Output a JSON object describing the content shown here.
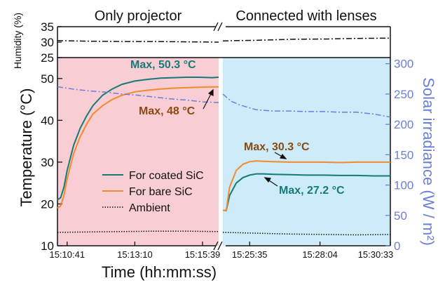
{
  "chart_data": {
    "type": "line",
    "panels": {
      "left_title": "Only projector",
      "right_title": "Connected with lenses"
    },
    "xlabel": "Time (hh:mm:ss)",
    "x_ticks_left": [
      "15:10:41",
      "15:13:10",
      "15:15:39"
    ],
    "x_ticks_right": [
      "15:25:35",
      "15:28:04",
      "15:30:33"
    ],
    "ylabel_temperature": "Temperature (°C)",
    "ylabel_humidity": "Humidity (%)",
    "ylabel_right": "Solar irradiance (W / m²)",
    "temperature_ticks": [
      "10",
      "20",
      "30",
      "40",
      "50"
    ],
    "humidity_ticks": [
      "25",
      "30",
      "35"
    ],
    "irradiance_ticks": [
      "0",
      "50",
      "100",
      "150",
      "200",
      "250",
      "300"
    ],
    "ylim_temperature": [
      10,
      55
    ],
    "ylim_humidity": [
      25,
      35
    ],
    "ylim_irradiance": [
      0,
      310
    ],
    "legend": {
      "placement": "left-middle",
      "entries": [
        "For coated SiC",
        "For bare SiC",
        "Ambient"
      ]
    },
    "annotations": {
      "left_coated": "Max, 50.3 °C",
      "left_bare": "Max, 48 °C",
      "right_bare": "Max, 30.3 °C",
      "right_coated": "Max, 27.2 °C"
    },
    "colors": {
      "coated": "#167a78",
      "bare": "#f28a2e",
      "ambient": "#111111",
      "humidity": "#111111",
      "irradiance": "#6b7fd8",
      "left_bg": "#f8cdd3",
      "right_bg": "#cdebf8",
      "right_axis": "#6b7fd8",
      "annot_coated": "#167a78",
      "annot_bare": "#8a4a12"
    },
    "series": [
      {
        "name": "For coated SiC",
        "left": {
          "x": [
            0,
            2,
            4,
            6,
            8,
            10,
            14,
            18,
            22,
            28,
            34,
            40,
            48,
            56,
            64,
            72,
            80,
            88,
            96,
            100
          ],
          "y": [
            21,
            21.5,
            24,
            28,
            31,
            34,
            38,
            41,
            43.5,
            46,
            47.5,
            48.6,
            49.4,
            49.8,
            50.1,
            50.2,
            50.3,
            50.3,
            50.2,
            50.3
          ]
        },
        "right": {
          "x": [
            0,
            2,
            4,
            8,
            12,
            16,
            20,
            24,
            30,
            40,
            50,
            60,
            70,
            80,
            90,
            100
          ],
          "y": [
            18.5,
            18.4,
            22,
            25,
            26.3,
            26.9,
            27.2,
            27.2,
            27.1,
            27.0,
            26.9,
            26.9,
            26.8,
            26.8,
            26.7,
            26.7
          ]
        }
      },
      {
        "name": "For bare SiC",
        "left": {
          "x": [
            0,
            2,
            4,
            6,
            8,
            10,
            14,
            18,
            22,
            28,
            34,
            40,
            48,
            56,
            64,
            72,
            80,
            88,
            96,
            100
          ],
          "y": [
            19,
            19.5,
            22,
            26,
            29,
            32,
            36,
            39,
            41.5,
            43.5,
            45,
            46,
            46.8,
            47.2,
            47.5,
            47.7,
            47.8,
            47.9,
            48.0,
            48.0
          ]
        },
        "right": {
          "x": [
            0,
            2,
            4,
            8,
            12,
            16,
            20,
            24,
            30,
            40,
            50,
            60,
            70,
            80,
            90,
            100
          ],
          "y": [
            18.5,
            18.4,
            24,
            28,
            29.5,
            30.1,
            30.3,
            30.2,
            30.1,
            30.0,
            30.0,
            30.0,
            29.9,
            30.0,
            30.0,
            30.0
          ]
        }
      },
      {
        "name": "Ambient",
        "left": {
          "x": [
            0,
            20,
            40,
            60,
            80,
            100
          ],
          "y": [
            13.2,
            13.3,
            13.4,
            13.5,
            13.5,
            13.4
          ]
        },
        "right": {
          "x": [
            0,
            20,
            40,
            60,
            80,
            100
          ],
          "y": [
            13.2,
            13.0,
            12.8,
            12.7,
            12.6,
            12.7
          ]
        }
      },
      {
        "name": "Humidity",
        "left": {
          "x": [
            0,
            20,
            40,
            60,
            80,
            100
          ],
          "y": [
            30.5,
            30.3,
            30.2,
            30.2,
            30.1,
            30.0
          ]
        },
        "right": {
          "x": [
            0,
            20,
            40,
            60,
            80,
            100
          ],
          "y": [
            30.4,
            30.6,
            30.9,
            31.0,
            31.2,
            31.3
          ]
        }
      },
      {
        "name": "Solar irradiance",
        "left": {
          "x": [
            0,
            10,
            20,
            30,
            40,
            50,
            60,
            70,
            80,
            90,
            100
          ],
          "y": [
            262,
            258,
            255,
            253,
            250,
            248,
            245,
            242,
            240,
            237,
            236
          ]
        },
        "right": {
          "x": [
            0,
            5,
            10,
            15,
            20,
            30,
            40,
            50,
            60,
            70,
            80,
            90,
            100
          ],
          "y": [
            250,
            238,
            232,
            228,
            224,
            222,
            222,
            221,
            221,
            220,
            220,
            217,
            212
          ]
        }
      }
    ]
  }
}
